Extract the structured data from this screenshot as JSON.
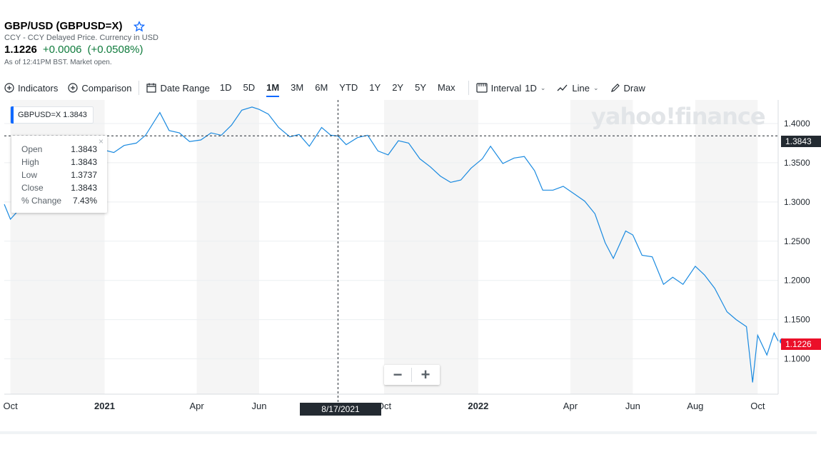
{
  "header": {
    "title": "GBP/USD (GBPUSD=X)",
    "subtitle": "CCY - CCY Delayed Price. Currency in USD",
    "price": "1.1226",
    "change": "+0.0006",
    "change_pct": "(+0.0508%)",
    "as_of": "As of 12:41PM BST. Market open."
  },
  "toolbar": {
    "indicators": "Indicators",
    "comparison": "Comparison",
    "date_range": "Date Range",
    "ranges": [
      "1D",
      "5D",
      "1M",
      "3M",
      "6M",
      "YTD",
      "1Y",
      "2Y",
      "5Y",
      "Max"
    ],
    "active_range": "1M",
    "interval_label": "Interval",
    "interval_value": "1D",
    "line_label": "Line",
    "draw_label": "Draw"
  },
  "legend": {
    "label": "GBPUSD=X",
    "value": "1.3843"
  },
  "tooltip": {
    "rows": [
      {
        "label": "Open",
        "value": "1.3843"
      },
      {
        "label": "High",
        "value": "1.3843"
      },
      {
        "label": "Low",
        "value": "1.3737"
      },
      {
        "label": "Close",
        "value": "1.3843"
      },
      {
        "label": "% Change",
        "value": "7.43%"
      }
    ],
    "close": "×"
  },
  "crosshair": {
    "date": "8/17/2021",
    "value": "1.3843"
  },
  "last_price_label": "1.1226",
  "watermark": "yahoo!finance",
  "zoom": {
    "minus": "−",
    "plus": "+"
  },
  "colors": {
    "line": "#1a8ae0",
    "accent": "#0f69ff",
    "down_label": "#eb0f29",
    "crosshair_label": "#232a31",
    "shade": "#f5f5f5"
  },
  "chart_data": {
    "type": "line",
    "x_tick_labels": [
      "Oct",
      "2021",
      "Apr",
      "Jun",
      "Oct",
      "2022",
      "Apr",
      "Jun",
      "Aug",
      "Oct"
    ],
    "y_tick_labels": [
      "1.4000",
      "1.3500",
      "1.3000",
      "1.2500",
      "1.2000",
      "1.1500",
      "1.1000"
    ],
    "ylim": [
      1.055,
      1.43
    ],
    "xlim": [
      "2020-09-25",
      "2022-10-21"
    ],
    "grid": true,
    "series": [
      {
        "name": "GBPUSD=X",
        "x": [
          "2020-09-25",
          "2020-10-01",
          "2020-10-10",
          "2020-10-20",
          "2020-11-01",
          "2020-11-10",
          "2020-11-20",
          "2020-12-01",
          "2020-12-10",
          "2020-12-20",
          "2021-01-01",
          "2021-01-10",
          "2021-01-20",
          "2021-02-01",
          "2021-02-10",
          "2021-02-24",
          "2021-03-05",
          "2021-03-15",
          "2021-03-25",
          "2021-04-05",
          "2021-04-15",
          "2021-04-25",
          "2021-05-05",
          "2021-05-15",
          "2021-05-25",
          "2021-06-01",
          "2021-06-10",
          "2021-06-20",
          "2021-07-01",
          "2021-07-10",
          "2021-07-20",
          "2021-08-01",
          "2021-08-10",
          "2021-08-17",
          "2021-08-25",
          "2021-09-05",
          "2021-09-15",
          "2021-09-25",
          "2021-10-05",
          "2021-10-15",
          "2021-10-25",
          "2021-11-05",
          "2021-11-15",
          "2021-11-25",
          "2021-12-05",
          "2021-12-15",
          "2021-12-25",
          "2022-01-05",
          "2022-01-13",
          "2022-01-25",
          "2022-02-05",
          "2022-02-15",
          "2022-02-25",
          "2022-03-05",
          "2022-03-15",
          "2022-03-25",
          "2022-04-05",
          "2022-04-15",
          "2022-04-25",
          "2022-05-05",
          "2022-05-13",
          "2022-05-25",
          "2022-06-01",
          "2022-06-10",
          "2022-06-20",
          "2022-07-01",
          "2022-07-10",
          "2022-07-20",
          "2022-08-01",
          "2022-08-10",
          "2022-08-20",
          "2022-09-01",
          "2022-09-10",
          "2022-09-20",
          "2022-09-26",
          "2022-10-01",
          "2022-10-10",
          "2022-10-17",
          "2022-10-21"
        ],
        "y": [
          1.297,
          1.278,
          1.291,
          1.303,
          1.298,
          1.316,
          1.327,
          1.336,
          1.348,
          1.356,
          1.366,
          1.363,
          1.372,
          1.375,
          1.385,
          1.414,
          1.391,
          1.388,
          1.377,
          1.379,
          1.388,
          1.385,
          1.398,
          1.417,
          1.421,
          1.418,
          1.412,
          1.395,
          1.383,
          1.386,
          1.371,
          1.395,
          1.385,
          1.384,
          1.373,
          1.382,
          1.385,
          1.365,
          1.36,
          1.378,
          1.375,
          1.355,
          1.345,
          1.333,
          1.325,
          1.328,
          1.343,
          1.355,
          1.371,
          1.349,
          1.356,
          1.358,
          1.34,
          1.315,
          1.315,
          1.32,
          1.31,
          1.301,
          1.285,
          1.248,
          1.228,
          1.263,
          1.258,
          1.232,
          1.23,
          1.195,
          1.204,
          1.195,
          1.218,
          1.207,
          1.19,
          1.16,
          1.15,
          1.141,
          1.07,
          1.13,
          1.105,
          1.133,
          1.1226
        ]
      }
    ]
  }
}
